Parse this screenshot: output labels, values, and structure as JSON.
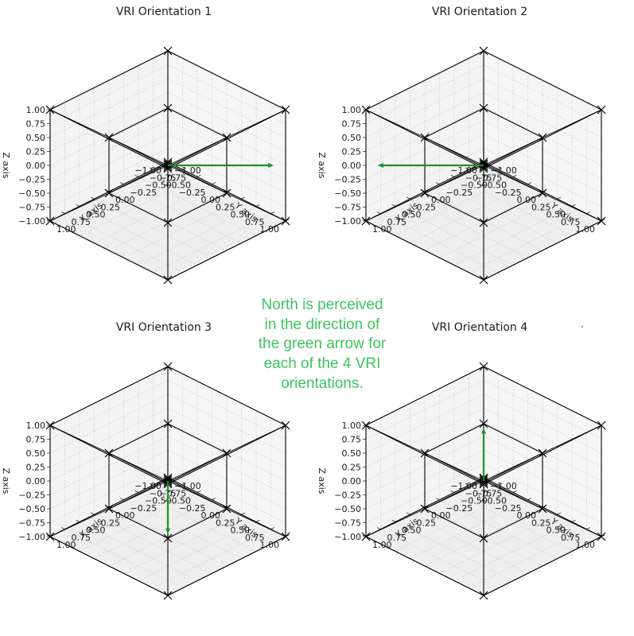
{
  "chart_data": {
    "type": "3d-wireframe",
    "note_lines": [
      "North is perceived",
      "in the direction of",
      "the green arrow for",
      "each of the 4 VRI",
      "orientations."
    ],
    "note_color": "#3dc45e",
    "dot_mark": ".",
    "arrow_color": "#1f8f2a",
    "frame_color": "#000000",
    "axis_range": [
      -1.0,
      1.0
    ],
    "ticks": [
      -1.0,
      -0.75,
      -0.5,
      -0.25,
      0.0,
      0.25,
      0.5,
      0.75,
      1.0
    ],
    "tick_labels": [
      "−1.00",
      "−0.75",
      "−0.50",
      "−0.25",
      "0.00",
      "0.25",
      "0.50",
      "0.75",
      "1.00"
    ],
    "xlabel": "X axis",
    "ylabel": "Y axis",
    "zlabel": "Z axis",
    "wire_points": [
      [
        -1,
        -1,
        -1
      ],
      [
        1,
        -1,
        -1
      ],
      [
        1,
        1,
        -1
      ],
      [
        -1,
        1,
        -1
      ],
      [
        -1,
        -1,
        1
      ],
      [
        1,
        -1,
        1
      ],
      [
        1,
        1,
        1
      ],
      [
        -1,
        1,
        1
      ],
      [
        -0.5,
        -0.5,
        -0.5
      ],
      [
        0.5,
        -0.5,
        -0.5
      ],
      [
        0.5,
        0.5,
        -0.5
      ],
      [
        -0.5,
        0.5,
        -0.5
      ],
      [
        -0.5,
        -0.5,
        0.5
      ],
      [
        0.5,
        -0.5,
        0.5
      ],
      [
        0.5,
        0.5,
        0.5
      ],
      [
        -0.5,
        0.5,
        0.5
      ]
    ],
    "panels": [
      {
        "title": "VRI Orientation 1",
        "arrow_from": [
          0,
          0,
          0
        ],
        "arrow_to": [
          -0.9,
          0.9,
          0
        ]
      },
      {
        "title": "VRI Orientation 2",
        "arrow_from": [
          0,
          0,
          0
        ],
        "arrow_to": [
          0.9,
          -0.9,
          0
        ]
      },
      {
        "title": "VRI Orientation 3",
        "arrow_from": [
          0,
          0,
          0
        ],
        "arrow_to": [
          0.9,
          0.9,
          0
        ]
      },
      {
        "title": "VRI Orientation 4",
        "arrow_from": [
          0,
          0,
          0
        ],
        "arrow_to": [
          -0.9,
          -0.9,
          0
        ]
      }
    ]
  }
}
